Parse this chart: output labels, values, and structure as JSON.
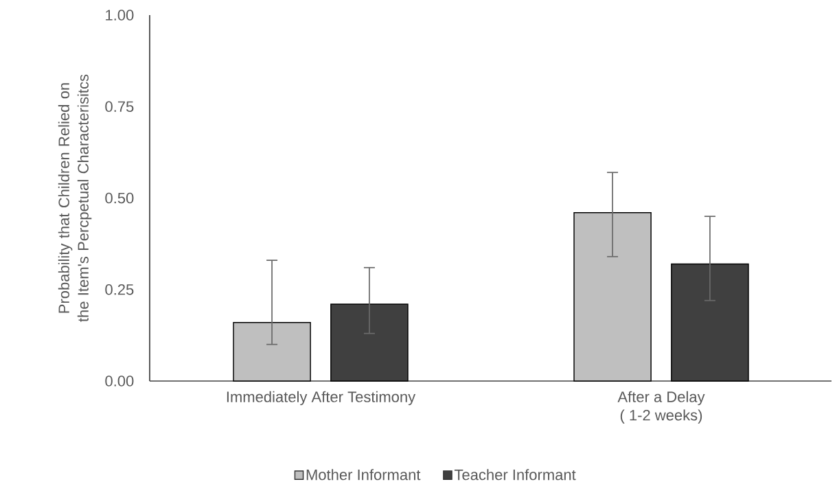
{
  "chart_data": {
    "type": "bar",
    "ylabel": "Probability that Children Relied on  the Item's Percpetual Characterisitcs",
    "categories": [
      "Immediately After Testimony",
      "After a Delay ( 1-2 weeks)"
    ],
    "series": [
      {
        "name": "Mother Informant",
        "color": "#bfbfbf",
        "values": [
          0.16,
          0.46
        ],
        "errors": [
          [
            0.1,
            0.33
          ],
          [
            0.34,
            0.57
          ]
        ]
      },
      {
        "name": "Teacher Informant",
        "color": "#404040",
        "values": [
          0.21,
          0.32
        ],
        "errors": [
          [
            0.13,
            0.31
          ],
          [
            0.22,
            0.45
          ]
        ]
      }
    ],
    "ylim": [
      0,
      1
    ],
    "yticks": [
      {
        "value": 0,
        "label": "0.00"
      },
      {
        "value": 0.25,
        "label": "0.25"
      },
      {
        "value": 0.5,
        "label": "0.50"
      },
      {
        "value": 0.75,
        "label": "0.75"
      },
      {
        "value": 1,
        "label": "1.00"
      }
    ],
    "legend": "bottom",
    "grid": false
  }
}
